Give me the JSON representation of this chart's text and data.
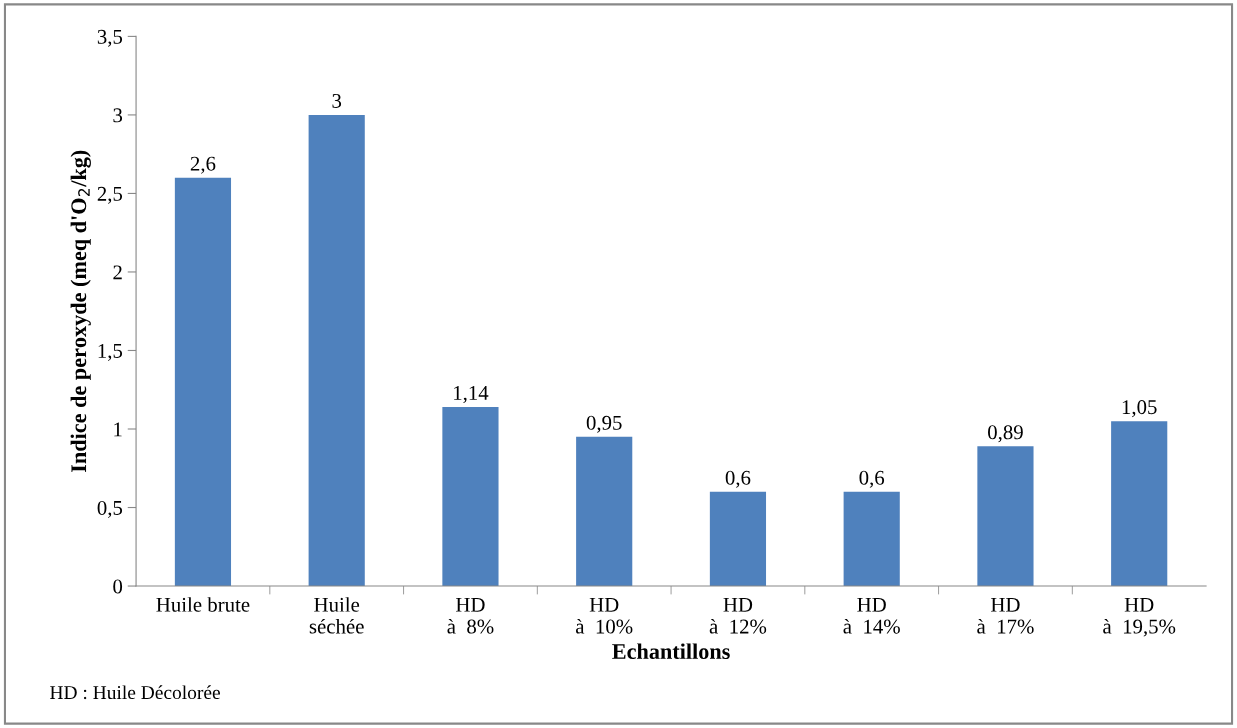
{
  "chart_data": {
    "type": "bar",
    "xlabel": "Echantillons",
    "ylabel": "Indice de peroxyde (meq d'O$_{2}$/kg)",
    "categories": [
      "Huile brute",
      "Huile\nséchée",
      "HD\nà  8%",
      "HD\nà  10%",
      "HD\nà  12%",
      "HD\nà  14%",
      "HD\nà  17%",
      "HD\nà  19,5%"
    ],
    "values": [
      2.6,
      3,
      1.14,
      0.95,
      0.6,
      0.6,
      0.89,
      1.05
    ],
    "value_labels": [
      "2,6",
      "3",
      "1,14",
      "0,95",
      "0,6",
      "0,6",
      "0,89",
      "1,05"
    ],
    "color": "#4f81bd",
    "ylim": [
      0,
      3.5
    ],
    "yticks": [
      0,
      {
        "value": 0.5,
        "label": "0,5"
      },
      1,
      {
        "value": 1.5,
        "label": "1,5"
      },
      2,
      {
        "value": 2.5,
        "label": "2,5"
      },
      3,
      {
        "value": 3.5,
        "label": "3,5"
      }
    ],
    "grid": false,
    "legend": false,
    "annotations": [
      "HD : Huile Décolorée"
    ]
  }
}
